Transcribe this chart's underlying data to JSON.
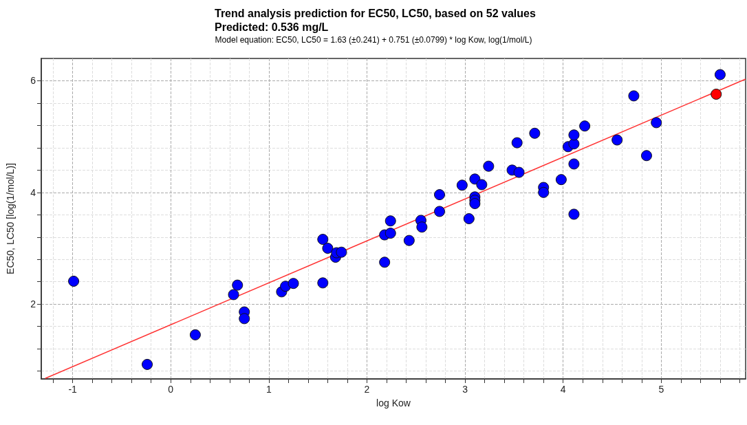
{
  "chart_data": {
    "type": "scatter",
    "title": "Trend analysis prediction for EC50, LC50, based on 52 values\nPredicted: 0.536 mg/L",
    "subtitle": "Model equation: EC50, LC50 = 1.63 (±0.241) + 0.751 (±0.0799) * log Kow, log(1/mol/L)",
    "xlabel": "log Kow",
    "ylabel": "EC50, LC50 [log(1/mol/L)]",
    "series": [
      {
        "color": "#0000ff",
        "x": [
          -0.99,
          -0.24,
          0.25,
          0.64,
          0.68,
          0.75,
          0.75,
          1.13,
          1.17,
          1.25,
          1.55,
          1.55,
          1.6,
          1.68,
          1.69,
          1.74,
          2.18,
          2.18,
          2.24,
          2.24,
          2.43,
          2.55,
          2.56,
          2.74,
          2.74,
          2.97,
          3.04,
          3.1,
          3.1,
          3.1,
          3.1,
          3.17,
          3.24,
          3.48,
          3.55,
          3.53,
          3.71,
          3.8,
          3.8,
          3.98,
          4.05,
          4.11,
          4.11,
          4.11,
          4.11,
          4.22,
          4.55,
          4.72,
          4.85,
          4.95,
          5.6
        ],
        "values": [
          2.41,
          0.92,
          1.45,
          2.17,
          2.34,
          1.86,
          1.74,
          2.22,
          2.32,
          2.37,
          2.38,
          3.16,
          3.0,
          2.84,
          2.92,
          2.93,
          3.24,
          2.75,
          3.49,
          3.27,
          3.14,
          3.5,
          3.38,
          3.96,
          3.66,
          4.13,
          3.53,
          4.24,
          3.92,
          3.86,
          3.8,
          4.14,
          4.47,
          4.4,
          4.36,
          4.89,
          5.06,
          4.09,
          4.0,
          4.23,
          4.82,
          4.87,
          5.03,
          4.51,
          3.61,
          5.19,
          4.94,
          5.73,
          4.66,
          5.25,
          6.11
        ]
      },
      {
        "color": "#ff0000",
        "x": [
          5.56
        ],
        "values": [
          5.76
        ]
      },
      {
        "type": "line",
        "color": "#ff3333",
        "marker": "none",
        "x": [
          -1.28,
          5.86
        ],
        "values": [
          0.67,
          6.03
        ]
      }
    ],
    "xlim": [
      -1.32,
      5.86
    ],
    "ylim": [
      0.66,
      6.4
    ],
    "xticks": [
      {
        "value": -1.2,
        "label": null
      },
      -1,
      {
        "value": -0.8,
        "label": null
      },
      {
        "value": -0.6,
        "label": null
      },
      {
        "value": -0.4,
        "label": null
      },
      {
        "value": -0.2,
        "label": null
      },
      0,
      {
        "value": 0.2,
        "label": null
      },
      {
        "value": 0.4,
        "label": null
      },
      {
        "value": 0.6,
        "label": null
      },
      {
        "value": 0.8,
        "label": null
      },
      1,
      {
        "value": 1.2,
        "label": null
      },
      {
        "value": 1.4,
        "label": null
      },
      {
        "value": 1.6,
        "label": null
      },
      {
        "value": 1.8,
        "label": null
      },
      2,
      {
        "value": 2.2,
        "label": null
      },
      {
        "value": 2.4,
        "label": null
      },
      {
        "value": 2.6,
        "label": null
      },
      {
        "value": 2.8,
        "label": null
      },
      3,
      {
        "value": 3.2,
        "label": null
      },
      {
        "value": 3.4,
        "label": null
      },
      {
        "value": 3.6,
        "label": null
      },
      {
        "value": 3.8,
        "label": null
      },
      4,
      {
        "value": 4.2,
        "label": null
      },
      {
        "value": 4.4,
        "label": null
      },
      {
        "value": 4.6,
        "label": null
      },
      {
        "value": 4.8,
        "label": null
      },
      5,
      {
        "value": 5.2,
        "label": null
      },
      {
        "value": 5.4,
        "label": null
      },
      {
        "value": 5.6,
        "label": null
      },
      {
        "value": 5.8,
        "label": null
      }
    ],
    "yticks": [
      {
        "value": 0.8,
        "label": null
      },
      {
        "value": 1.2,
        "label": null
      },
      {
        "value": 1.6,
        "label": null
      },
      2,
      {
        "value": 2.4,
        "label": null
      },
      {
        "value": 2.8,
        "label": null
      },
      {
        "value": 3.2,
        "label": null
      },
      {
        "value": 3.6,
        "label": null
      },
      4,
      {
        "value": 4.4,
        "label": null
      },
      {
        "value": 4.8,
        "label": null
      },
      {
        "value": 5.2,
        "label": null
      },
      {
        "value": 5.6,
        "label": null
      },
      6
    ],
    "grid": true,
    "marker": "circle"
  }
}
